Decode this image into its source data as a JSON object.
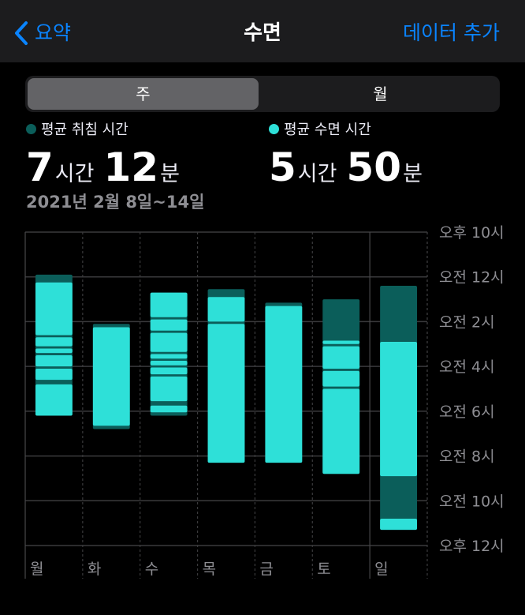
{
  "nav": {
    "back_label": "요약",
    "title": "수면",
    "add_data": "데이터 추가"
  },
  "segment": {
    "week": "주",
    "month": "월"
  },
  "stats": {
    "bed": {
      "label": "평균 취침 시간",
      "hours": "7",
      "hours_unit": "시간",
      "minutes": "12",
      "minutes_unit": "분",
      "color": "#0b5e5a"
    },
    "sleep": {
      "label": "평균 수면 시간",
      "hours": "5",
      "hours_unit": "시간",
      "minutes": "50",
      "minutes_unit": "분",
      "color": "#2ee0d8"
    }
  },
  "date_range": "2021년 2월 8일~14일",
  "colors": {
    "in_bed": "#0b5e5a",
    "asleep": "#2ee0d8",
    "accent": "#0a84ff",
    "navbar_bg": "#1c1c1e"
  },
  "chart_data": {
    "type": "bar",
    "y_axis_start": "오후 10시",
    "y_tick_labels": [
      "오후 10시",
      "오전 12시",
      "오전 2시",
      "오전 4시",
      "오전 6시",
      "오전 8시",
      "오전 10시",
      "오후 12시"
    ],
    "y_range_hours_after_10pm": [
      0,
      14
    ],
    "days": [
      "월",
      "화",
      "수",
      "목",
      "금",
      "토",
      "일"
    ],
    "in_bed": [
      {
        "day": "월",
        "start": 1.9,
        "end": 8.2
      },
      {
        "day": "화",
        "start": 4.1,
        "end": 8.8
      },
      {
        "day": "수",
        "start": 2.7,
        "end": 8.2
      },
      {
        "day": "목",
        "start": 2.55,
        "end": 10.3
      },
      {
        "day": "금",
        "start": 3.15,
        "end": 10.3
      },
      {
        "day": "토",
        "start": 3.0,
        "end": 10.8
      },
      {
        "day": "일",
        "start": 2.4,
        "end": 13.3
      }
    ],
    "asleep": [
      {
        "day": "월",
        "start": 2.25,
        "end": 4.6
      },
      {
        "day": "월",
        "start": 4.7,
        "end": 5.1
      },
      {
        "day": "월",
        "start": 5.2,
        "end": 5.4
      },
      {
        "day": "월",
        "start": 5.5,
        "end": 6.0
      },
      {
        "day": "월",
        "start": 6.1,
        "end": 6.6
      },
      {
        "day": "월",
        "start": 6.8,
        "end": 8.2
      },
      {
        "day": "화",
        "start": 4.25,
        "end": 8.65
      },
      {
        "day": "수",
        "start": 2.7,
        "end": 3.8
      },
      {
        "day": "수",
        "start": 3.9,
        "end": 4.4
      },
      {
        "day": "수",
        "start": 4.5,
        "end": 5.35
      },
      {
        "day": "수",
        "start": 5.45,
        "end": 5.65
      },
      {
        "day": "수",
        "start": 5.75,
        "end": 5.95
      },
      {
        "day": "수",
        "start": 6.05,
        "end": 6.35
      },
      {
        "day": "수",
        "start": 6.45,
        "end": 7.55
      },
      {
        "day": "수",
        "start": 7.75,
        "end": 8.05
      },
      {
        "day": "목",
        "start": 2.9,
        "end": 4.0
      },
      {
        "day": "목",
        "start": 4.1,
        "end": 10.3
      },
      {
        "day": "금",
        "start": 3.3,
        "end": 10.3
      },
      {
        "day": "토",
        "start": 4.85,
        "end": 5.0
      },
      {
        "day": "토",
        "start": 5.1,
        "end": 6.1
      },
      {
        "day": "토",
        "start": 6.2,
        "end": 6.9
      },
      {
        "day": "토",
        "start": 7.0,
        "end": 10.8
      },
      {
        "day": "일",
        "start": 4.9,
        "end": 10.9
      },
      {
        "day": "일",
        "start": 12.8,
        "end": 13.3
      }
    ]
  }
}
